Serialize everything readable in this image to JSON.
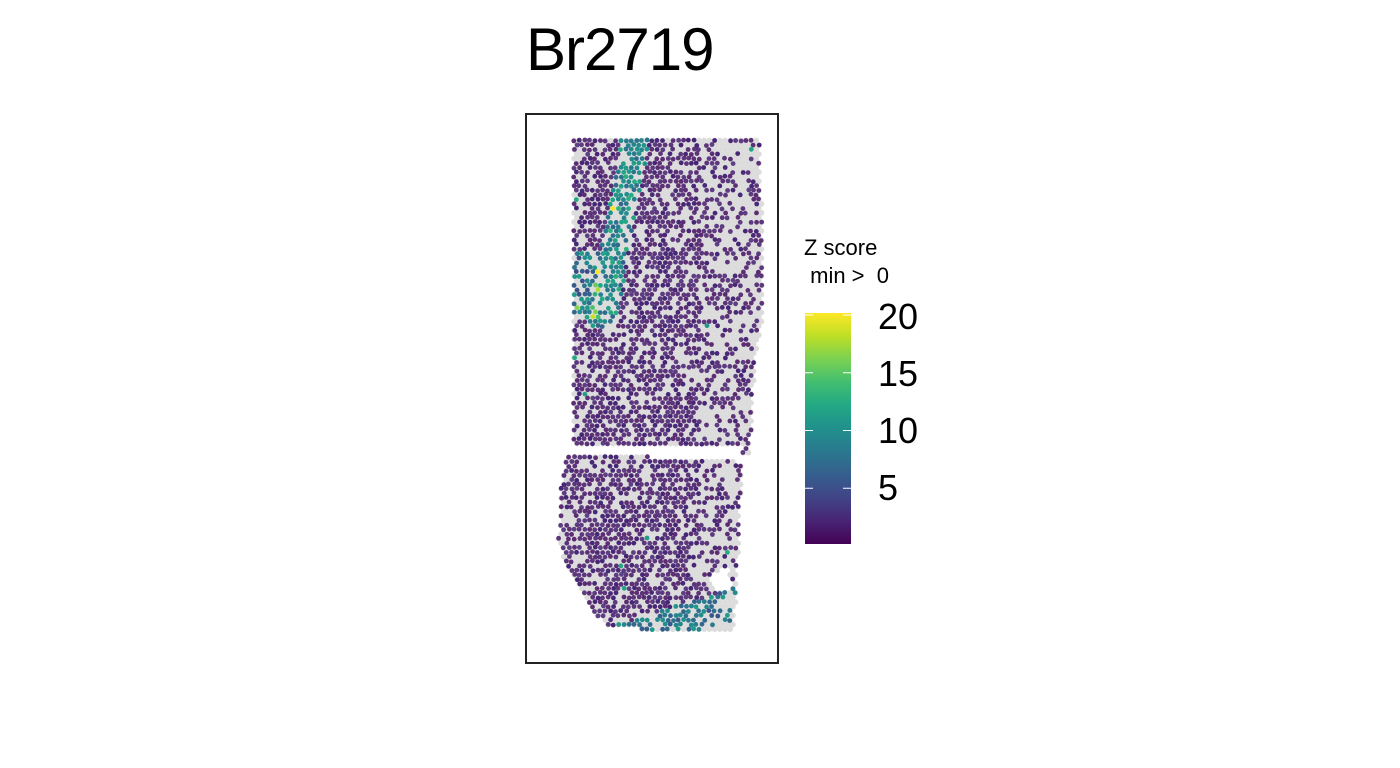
{
  "chart_data": {
    "type": "scatter",
    "title": "Br2719",
    "legend": {
      "title_line1": "Z score",
      "title_line2": " min >  0",
      "range": [
        0,
        20
      ],
      "ticks": [
        20,
        15,
        10,
        5
      ],
      "tick_labels": [
        "20",
        "15",
        "10",
        "5"
      ],
      "placement": "right",
      "colormap": [
        "#440154",
        "#482475",
        "#414487",
        "#355f8d",
        "#2a788e",
        "#21908d",
        "#22a884",
        "#42be71",
        "#7ad151",
        "#bddf26",
        "#fde725"
      ]
    },
    "background_spot_color": "#dcdcdc",
    "grid": false,
    "frame": true
  }
}
